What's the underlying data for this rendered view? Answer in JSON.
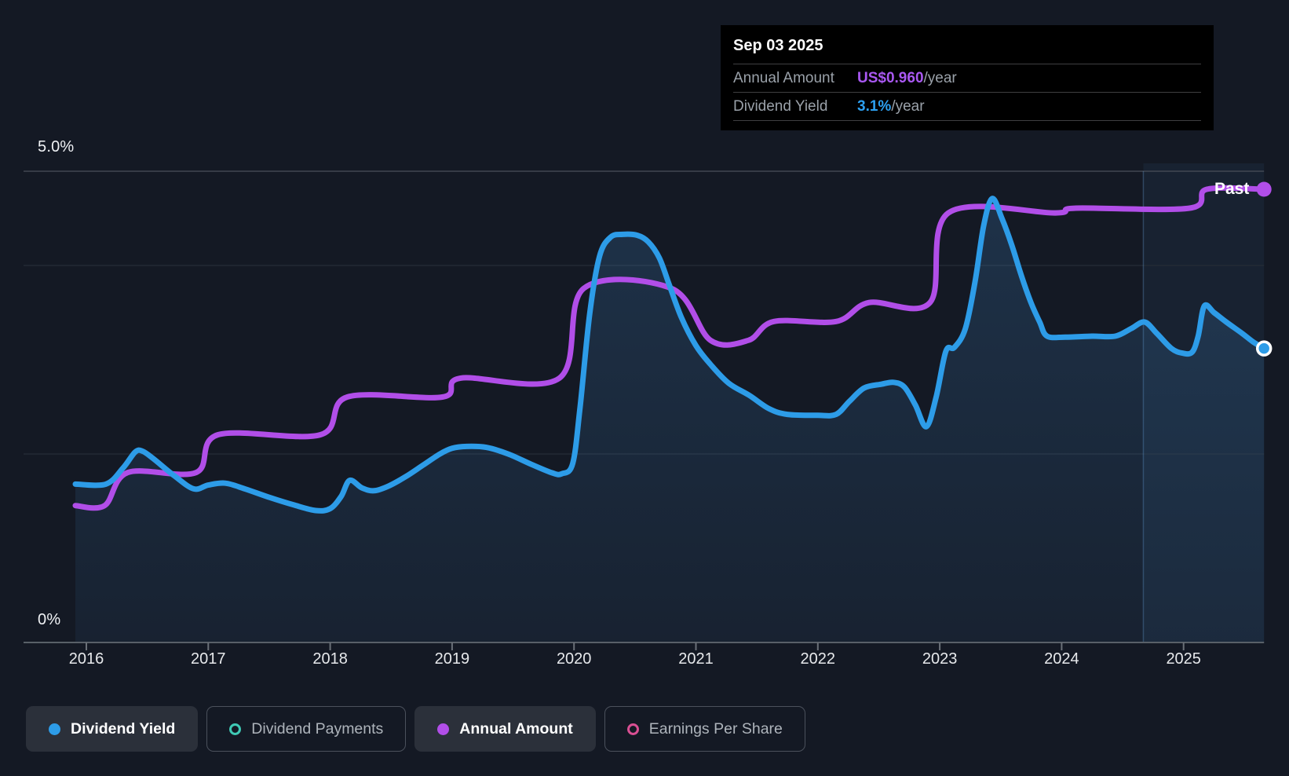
{
  "tooltip": {
    "date": "Sep 03 2025",
    "rows": [
      {
        "label": "Annual Amount",
        "value": "US$0.960",
        "suffix": "/year",
        "color": "#a958f2"
      },
      {
        "label": "Dividend Yield",
        "value": "3.1%",
        "suffix": "/year",
        "color": "#2da0f0"
      }
    ]
  },
  "axis": {
    "y_top": "5.0%",
    "y_bottom": "0%",
    "years": [
      "2016",
      "2017",
      "2018",
      "2019",
      "2020",
      "2021",
      "2022",
      "2023",
      "2024",
      "2025"
    ]
  },
  "past_label": "Past",
  "legend": [
    {
      "label": "Dividend Yield",
      "color": "#2d9ce8",
      "style": "filled",
      "active": true
    },
    {
      "label": "Dividend Payments",
      "color": "#3fc9b5",
      "style": "ring",
      "active": false
    },
    {
      "label": "Annual Amount",
      "color": "#b14ee8",
      "style": "filled",
      "active": true
    },
    {
      "label": "Earnings Per Share",
      "color": "#d94f93",
      "style": "ring",
      "active": false
    }
  ],
  "chart_data": {
    "type": "line",
    "title": "Dividend yield and annual amount history",
    "x_range": [
      2015.91,
      2025.66
    ],
    "past_start_x": 2024.67,
    "grid_on": true,
    "legend_position": "bottom",
    "yield_axis": {
      "min": 0,
      "max": 5,
      "unit": "%",
      "gridline_values": [
        5.0,
        4.0,
        2.0
      ],
      "baseline": 0
    },
    "amount_axis": {
      "min": 0,
      "max": 1.0,
      "unit": "US$/year"
    },
    "current": {
      "date": "Sep 03 2025",
      "annual_amount": "US$0.960/year",
      "dividend_yield": "3.1%/year"
    },
    "series": [
      {
        "name": "Dividend Yield",
        "unit": "%",
        "color": "#2d9ce8",
        "area_fill": true,
        "end_marker": "white-ring",
        "points": [
          [
            2015.91,
            1.68
          ],
          [
            2016.16,
            1.68
          ],
          [
            2016.3,
            1.85
          ],
          [
            2016.4,
            2.02
          ],
          [
            2016.46,
            2.03
          ],
          [
            2016.55,
            1.95
          ],
          [
            2016.72,
            1.77
          ],
          [
            2016.88,
            1.63
          ],
          [
            2017.0,
            1.67
          ],
          [
            2017.14,
            1.69
          ],
          [
            2017.3,
            1.63
          ],
          [
            2017.5,
            1.54
          ],
          [
            2017.7,
            1.46
          ],
          [
            2017.88,
            1.4
          ],
          [
            2018.0,
            1.42
          ],
          [
            2018.09,
            1.55
          ],
          [
            2018.16,
            1.72
          ],
          [
            2018.26,
            1.64
          ],
          [
            2018.36,
            1.61
          ],
          [
            2018.48,
            1.66
          ],
          [
            2018.62,
            1.76
          ],
          [
            2018.76,
            1.88
          ],
          [
            2018.9,
            2.0
          ],
          [
            2019.0,
            2.06
          ],
          [
            2019.12,
            2.08
          ],
          [
            2019.28,
            2.07
          ],
          [
            2019.46,
            2.0
          ],
          [
            2019.65,
            1.89
          ],
          [
            2019.82,
            1.8
          ],
          [
            2019.9,
            1.79
          ],
          [
            2019.99,
            1.9
          ],
          [
            2020.05,
            2.5
          ],
          [
            2020.13,
            3.5
          ],
          [
            2020.21,
            4.1
          ],
          [
            2020.3,
            4.3
          ],
          [
            2020.4,
            4.33
          ],
          [
            2020.52,
            4.32
          ],
          [
            2020.61,
            4.25
          ],
          [
            2020.7,
            4.08
          ],
          [
            2020.78,
            3.8
          ],
          [
            2020.88,
            3.45
          ],
          [
            2021.0,
            3.15
          ],
          [
            2021.12,
            2.95
          ],
          [
            2021.27,
            2.75
          ],
          [
            2021.44,
            2.62
          ],
          [
            2021.6,
            2.48
          ],
          [
            2021.75,
            2.42
          ],
          [
            2022.0,
            2.41
          ],
          [
            2022.15,
            2.42
          ],
          [
            2022.26,
            2.56
          ],
          [
            2022.38,
            2.7
          ],
          [
            2022.52,
            2.74
          ],
          [
            2022.62,
            2.76
          ],
          [
            2022.71,
            2.71
          ],
          [
            2022.8,
            2.52
          ],
          [
            2022.89,
            2.29
          ],
          [
            2022.97,
            2.6
          ],
          [
            2023.05,
            3.09
          ],
          [
            2023.12,
            3.13
          ],
          [
            2023.21,
            3.33
          ],
          [
            2023.29,
            3.83
          ],
          [
            2023.36,
            4.42
          ],
          [
            2023.43,
            4.71
          ],
          [
            2023.51,
            4.5
          ],
          [
            2023.59,
            4.22
          ],
          [
            2023.67,
            3.89
          ],
          [
            2023.75,
            3.6
          ],
          [
            2023.82,
            3.4
          ],
          [
            2023.88,
            3.25
          ],
          [
            2024.03,
            3.24
          ],
          [
            2024.25,
            3.25
          ],
          [
            2024.44,
            3.25
          ],
          [
            2024.57,
            3.33
          ],
          [
            2024.68,
            3.4
          ],
          [
            2024.78,
            3.28
          ],
          [
            2024.9,
            3.12
          ],
          [
            2024.99,
            3.07
          ],
          [
            2025.07,
            3.08
          ],
          [
            2025.12,
            3.25
          ],
          [
            2025.17,
            3.57
          ],
          [
            2025.25,
            3.5
          ],
          [
            2025.35,
            3.4
          ],
          [
            2025.48,
            3.28
          ],
          [
            2025.57,
            3.19
          ],
          [
            2025.66,
            3.12
          ]
        ]
      },
      {
        "name": "Annual Amount",
        "unit": "US$/year",
        "color": "#b14ee8",
        "area_fill": false,
        "end_marker": "solid",
        "points": [
          [
            2015.91,
            0.29
          ],
          [
            2016.15,
            0.29
          ],
          [
            2016.34,
            0.36
          ],
          [
            2016.9,
            0.36
          ],
          [
            2017.08,
            0.44
          ],
          [
            2017.92,
            0.44
          ],
          [
            2018.14,
            0.52
          ],
          [
            2018.92,
            0.52
          ],
          [
            2019.07,
            0.56
          ],
          [
            2019.88,
            0.56
          ],
          [
            2020.08,
            0.75
          ],
          [
            2020.8,
            0.75
          ],
          [
            2021.12,
            0.64
          ],
          [
            2021.43,
            0.64
          ],
          [
            2021.64,
            0.68
          ],
          [
            2022.15,
            0.68
          ],
          [
            2022.42,
            0.72
          ],
          [
            2022.92,
            0.72
          ],
          [
            2023.07,
            0.91
          ],
          [
            2023.95,
            0.91
          ],
          [
            2024.12,
            0.92
          ],
          [
            2025.05,
            0.92
          ],
          [
            2025.19,
            0.96
          ],
          [
            2025.66,
            0.96
          ]
        ]
      }
    ]
  }
}
